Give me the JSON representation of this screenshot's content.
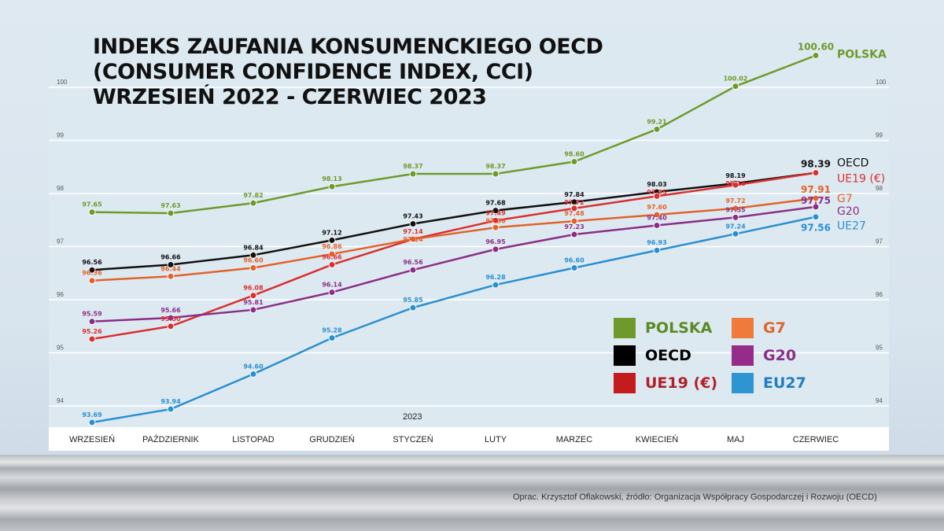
{
  "title_lines": [
    "INDEKS ZAUFANIA KONSUMENCKIEGO OECD",
    "(CONSUMER CONFIDENCE INDEX, CCI)",
    "WRZESIEŃ 2022 - CZERWIEC 2023"
  ],
  "source": "Oprac. Krzysztof Oflakowski, źródło: Organizacja Współpracy Gospodarczej i Rozwoju (OECD)",
  "chart_data": {
    "type": "line",
    "title": "INDEKS ZAUFANIA KONSUMENCKIEGO OECD (CONSUMER CONFIDENCE INDEX, CCI) WRZESIEŃ 2022 - CZERWIEC 2023",
    "categories": [
      "WRZESIEŃ",
      "PAŹDZIERNIK",
      "LISTOPAD",
      "GRUDZIEŃ",
      "STYCZEŃ",
      "LUTY",
      "MARZEC",
      "KWIECIEŃ",
      "MAJ",
      "CZERWIEC"
    ],
    "x_annotation": "2023",
    "ylim": [
      93.6,
      101.0
    ],
    "yticks": [
      94,
      95,
      96,
      97,
      98,
      99,
      100
    ],
    "grid": true,
    "legend_position": "bottom-right",
    "series": [
      {
        "name": "POLSKA",
        "end_label": "POLSKA",
        "color": "#6e9a2c",
        "values": [
          97.65,
          97.63,
          97.82,
          98.13,
          98.37,
          98.37,
          98.6,
          99.21,
          100.02,
          100.6
        ]
      },
      {
        "name": "OECD",
        "end_label": "OECD",
        "color": "#111111",
        "values": [
          96.56,
          96.66,
          96.84,
          97.12,
          97.43,
          97.68,
          97.84,
          98.03,
          98.19,
          98.39
        ]
      },
      {
        "name": "UE19 (€)",
        "end_label": "UE19 (€)",
        "color": "#d9302f",
        "values": [
          95.26,
          95.5,
          96.08,
          96.66,
          97.14,
          97.49,
          97.72,
          97.95,
          98.16,
          98.39
        ]
      },
      {
        "name": "G7",
        "end_label": "G7",
        "color": "#e2622a",
        "values": [
          96.36,
          96.44,
          96.6,
          96.86,
          97.14,
          97.36,
          97.48,
          97.6,
          97.72,
          97.91
        ]
      },
      {
        "name": "G20",
        "end_label": "G20",
        "color": "#8b2f86",
        "values": [
          95.59,
          95.66,
          95.81,
          96.14,
          96.56,
          96.95,
          97.23,
          97.4,
          97.55,
          97.75
        ]
      },
      {
        "name": "EU27",
        "end_label": "UE27",
        "color": "#2a8fd0",
        "values": [
          93.69,
          93.94,
          94.6,
          95.28,
          95.85,
          96.28,
          96.6,
          96.93,
          97.24,
          97.56
        ]
      }
    ]
  },
  "legend": [
    {
      "label": "POLSKA",
      "color": "#6e9a2c",
      "text_color": "#5b8a22"
    },
    {
      "label": "G7",
      "color": "#ef7a3c",
      "text_color": "#e0652a"
    },
    {
      "label": "OECD",
      "color": "#000000",
      "text_color": "#000000"
    },
    {
      "label": "G20",
      "color": "#962c8a",
      "text_color": "#8b2f86"
    },
    {
      "label": "UE19 (€)",
      "color": "#c41c1c",
      "text_color": "#b0202a"
    },
    {
      "label": "EU27",
      "color": "#2f95d2",
      "text_color": "#1f7fc0"
    }
  ]
}
